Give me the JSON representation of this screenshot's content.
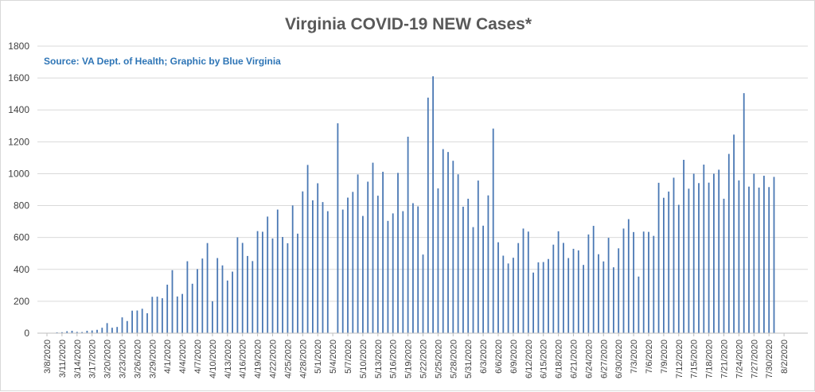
{
  "chart_data": {
    "type": "bar",
    "title": "Virginia COVID-19 NEW Cases*",
    "source_note": "Source: VA Dept. of Health; Graphic by Blue Virginia",
    "xlabel": "",
    "ylabel": "",
    "ylim": [
      0,
      1800
    ],
    "yticks": [
      0,
      200,
      400,
      600,
      800,
      1000,
      1200,
      1400,
      1600,
      1800
    ],
    "grid": true,
    "legend": "none",
    "bar_color": "#4a78b4",
    "start_date": "3/8/2020",
    "xtick_labels": [
      "3/8/2020",
      "3/11/2020",
      "3/14/2020",
      "3/17/2020",
      "3/20/2020",
      "3/23/2020",
      "3/26/2020",
      "3/29/2020",
      "4/1/2020",
      "4/4/2020",
      "4/7/2020",
      "4/10/2020",
      "4/13/2020",
      "4/16/2020",
      "4/19/2020",
      "4/22/2020",
      "4/25/2020",
      "4/28/2020",
      "5/1/2020",
      "5/4/2020",
      "5/7/2020",
      "5/10/2020",
      "5/13/2020",
      "5/16/2020",
      "5/19/2020",
      "5/22/2020",
      "5/25/2020",
      "5/28/2020",
      "5/31/2020",
      "6/3/2020",
      "6/6/2020",
      "6/9/2020",
      "6/12/2020",
      "6/15/2020",
      "6/18/2020",
      "6/21/2020",
      "6/24/2020",
      "6/27/2020",
      "6/30/2020",
      "7/3/2020",
      "7/6/2020",
      "7/9/2020",
      "7/12/2020",
      "7/15/2020",
      "7/18/2020",
      "7/21/2020",
      "7/24/2020",
      "7/27/2020",
      "7/30/2020",
      "8/2/2020"
    ],
    "values": [
      2,
      2,
      5,
      6,
      12,
      15,
      8,
      7,
      15,
      17,
      21,
      34,
      63,
      34,
      39,
      99,
      76,
      141,
      142,
      153,
      125,
      228,
      229,
      219,
      304,
      395,
      230,
      246,
      451,
      310,
      402,
      468,
      565,
      200,
      471,
      425,
      330,
      386,
      601,
      566,
      484,
      452,
      640,
      636,
      731,
      594,
      775,
      603,
      564,
      801,
      624,
      889,
      1055,
      833,
      940,
      822,
      765,
      0,
      1316,
      775,
      850,
      886,
      995,
      735,
      950,
      1069,
      862,
      1012,
      704,
      751,
      1005,
      765,
      1232,
      815,
      795,
      493,
      1477,
      1611,
      908,
      1154,
      1136,
      1081,
      996,
      793,
      843,
      665,
      957,
      674,
      864,
      1283,
      570,
      486,
      437,
      473,
      565,
      656,
      637,
      380,
      444,
      446,
      465,
      555,
      639,
      566,
      471,
      529,
      519,
      428,
      619,
      673,
      495,
      450,
      598,
      413,
      532,
      656,
      715,
      634,
      355,
      637,
      635,
      610,
      943,
      849,
      888,
      975,
      805,
      1087,
      906,
      1000,
      941,
      1057,
      944,
      1000,
      1025,
      843,
      1124,
      1245,
      958,
      1505,
      919,
      1000,
      913,
      987,
      916,
      980
    ]
  }
}
